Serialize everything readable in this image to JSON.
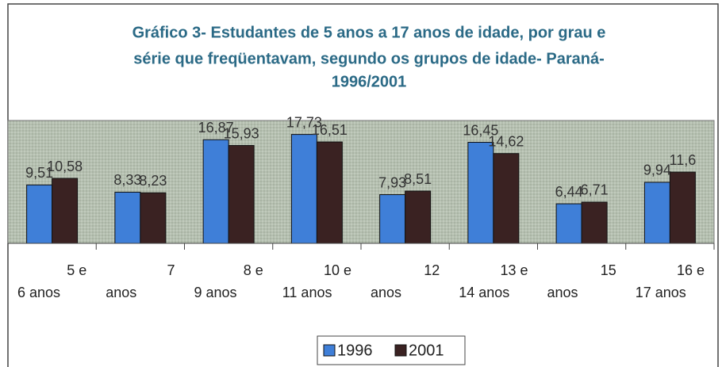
{
  "chart_data": {
    "type": "bar",
    "title": [
      "Gráfico 3- Estudantes de 5 anos a 17 anos de idade, por grau e",
      "série que freqüentavam, segundo os grupos de idade- Paraná-",
      "1996/2001"
    ],
    "categories": [
      [
        "5 e",
        "6 anos"
      ],
      [
        "7",
        "anos"
      ],
      [
        "8 e",
        "9 anos"
      ],
      [
        "10 e",
        "11 anos"
      ],
      [
        "12",
        "anos"
      ],
      [
        "13 e",
        "14 anos"
      ],
      [
        "15",
        "anos"
      ],
      [
        "16 e",
        "17 anos"
      ]
    ],
    "series": [
      {
        "name": "1996",
        "color": "#3f7fd8",
        "values": [
          9.51,
          8.33,
          16.87,
          17.73,
          7.93,
          16.45,
          6.44,
          9.94
        ],
        "value_labels": [
          "9,51",
          "8,33",
          "16,87",
          "17,73",
          "7,93",
          "16,45",
          "6,44",
          "9,94"
        ]
      },
      {
        "name": "2001",
        "color": "#3a2222",
        "values": [
          10.58,
          8.23,
          15.93,
          16.51,
          8.51,
          14.62,
          6.71,
          11.6
        ],
        "value_labels": [
          "10,58",
          "8,23",
          "15,93",
          "16,51",
          "8,51",
          "14,62",
          "6,71",
          "11,6"
        ]
      }
    ],
    "ylim": [
      0,
      20
    ]
  }
}
